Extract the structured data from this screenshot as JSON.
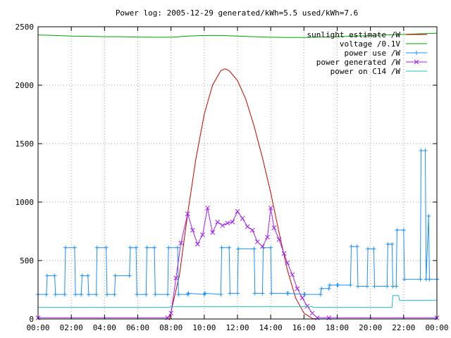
{
  "chart_data": {
    "type": "line",
    "title": "Power log: 2005-12-29 generated/kWh=5.5 used/kWh=7.6",
    "xlabel": "",
    "ylabel": "",
    "xlim": [
      0,
      24
    ],
    "ylim": [
      0,
      2500
    ],
    "grid": true,
    "legend_position": "top-right",
    "x_ticks": [
      {
        "v": 0,
        "label": "00:00"
      },
      {
        "v": 2,
        "label": "02:00"
      },
      {
        "v": 4,
        "label": "04:00"
      },
      {
        "v": 6,
        "label": "06:00"
      },
      {
        "v": 8,
        "label": "08:00"
      },
      {
        "v": 10,
        "label": "10:00"
      },
      {
        "v": 12,
        "label": "12:00"
      },
      {
        "v": 14,
        "label": "14:00"
      },
      {
        "v": 16,
        "label": "16:00"
      },
      {
        "v": 18,
        "label": "18:00"
      },
      {
        "v": 20,
        "label": "20:00"
      },
      {
        "v": 22,
        "label": "22:00"
      },
      {
        "v": 24,
        "label": "00:00"
      }
    ],
    "y_ticks": [
      {
        "v": 0,
        "label": "0"
      },
      {
        "v": 500,
        "label": "500"
      },
      {
        "v": 1000,
        "label": "1000"
      },
      {
        "v": 1500,
        "label": "1500"
      },
      {
        "v": 2000,
        "label": "2000"
      },
      {
        "v": 2500,
        "label": "2500"
      }
    ],
    "series": [
      {
        "name": "sunlight estimate /W",
        "color": "#cc0000",
        "marker": "none",
        "x": [
          7.9,
          8.5,
          9.0,
          9.5,
          10.0,
          10.5,
          11.0,
          11.25,
          11.5,
          12.0,
          12.5,
          13.0,
          13.5,
          14.0,
          14.5,
          15.0,
          15.5,
          16.0,
          16.5,
          16.8
        ],
        "y": [
          0,
          370,
          900,
          1370,
          1750,
          2000,
          2125,
          2140,
          2125,
          2040,
          1880,
          1650,
          1380,
          1080,
          740,
          420,
          180,
          50,
          5,
          0
        ]
      },
      {
        "name": "voltage /0.1V",
        "color": "#00a000",
        "marker": "none",
        "x": [
          0,
          1,
          2,
          3,
          4,
          5,
          6,
          7,
          8,
          9,
          10,
          11,
          12,
          13,
          14,
          15,
          16,
          17,
          18,
          19,
          20,
          21,
          22,
          23,
          24
        ],
        "y": [
          2430,
          2425,
          2420,
          2418,
          2415,
          2415,
          2412,
          2410,
          2410,
          2420,
          2425,
          2425,
          2420,
          2415,
          2410,
          2408,
          2408,
          2412,
          2415,
          2420,
          2425,
          2430,
          2435,
          2440,
          2445
        ]
      },
      {
        "name": "power use /W",
        "color": "#1e90ff",
        "marker": "plus",
        "x": [
          0.0,
          0.5,
          0.55,
          1.0,
          1.05,
          1.6,
          1.65,
          2.2,
          2.25,
          2.6,
          2.65,
          3.0,
          3.05,
          3.5,
          3.55,
          4.1,
          4.15,
          4.6,
          4.65,
          5.5,
          5.55,
          5.9,
          5.95,
          6.5,
          6.55,
          7.0,
          7.05,
          7.8,
          7.85,
          8.4,
          8.45,
          9.0,
          9.05,
          10.0,
          10.05,
          11.0,
          11.05,
          11.5,
          11.55,
          12.0,
          12.05,
          13.0,
          13.05,
          13.5,
          13.55,
          14.0,
          14.05,
          15.0,
          15.05,
          16.0,
          16.05,
          17.0,
          17.05,
          17.5,
          17.55,
          18.0,
          18.05,
          18.8,
          18.85,
          19.2,
          19.25,
          19.8,
          19.85,
          20.2,
          20.25,
          21.0,
          21.05,
          21.3,
          21.35,
          21.55,
          21.6,
          22.0,
          22.05,
          23.0,
          23.05,
          23.3,
          23.35,
          23.5,
          23.55,
          24.0
        ],
        "y": [
          210,
          210,
          370,
          370,
          210,
          210,
          610,
          610,
          210,
          210,
          370,
          370,
          210,
          210,
          610,
          610,
          210,
          210,
          370,
          370,
          610,
          610,
          210,
          210,
          610,
          610,
          210,
          210,
          610,
          610,
          210,
          210,
          220,
          210,
          220,
          210,
          610,
          610,
          220,
          220,
          600,
          600,
          220,
          220,
          610,
          610,
          220,
          220,
          220,
          210,
          210,
          210,
          260,
          260,
          290,
          290,
          290,
          290,
          620,
          620,
          280,
          280,
          600,
          600,
          280,
          280,
          640,
          640,
          280,
          280,
          760,
          760,
          340,
          340,
          1440,
          1440,
          340,
          880,
          340,
          340
        ]
      },
      {
        "name": "power generated /W",
        "color": "#a020f0",
        "marker": "cross",
        "x": [
          0,
          7.8,
          8.0,
          8.3,
          8.6,
          9.0,
          9.3,
          9.6,
          9.9,
          10.2,
          10.5,
          10.8,
          11.1,
          11.4,
          11.7,
          12.0,
          12.3,
          12.6,
          12.9,
          13.2,
          13.5,
          13.8,
          14.0,
          14.2,
          14.5,
          14.8,
          15.0,
          15.3,
          15.6,
          15.9,
          16.2,
          16.5,
          16.8,
          17.5,
          24
        ],
        "y": [
          10,
          10,
          50,
          350,
          650,
          900,
          760,
          640,
          720,
          950,
          740,
          830,
          800,
          820,
          830,
          920,
          860,
          790,
          760,
          660,
          620,
          700,
          950,
          780,
          680,
          560,
          480,
          380,
          260,
          180,
          110,
          50,
          10,
          10,
          10
        ]
      },
      {
        "name": "power on C14 /W",
        "color": "#20c0c0",
        "marker": "none",
        "x": [
          0,
          7.9,
          8.0,
          16.5,
          16.6,
          21.3,
          21.35,
          21.7,
          21.75,
          24
        ],
        "y": [
          100,
          100,
          105,
          105,
          100,
          100,
          200,
          200,
          160,
          160
        ]
      }
    ]
  }
}
